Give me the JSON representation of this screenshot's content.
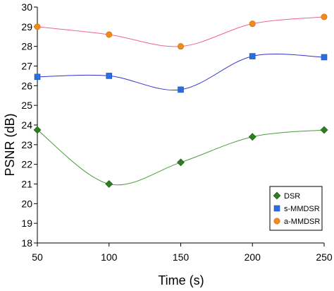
{
  "chart_data": {
    "type": "line",
    "title": "",
    "xlabel": "Time (s)",
    "ylabel": "PSNR (dB)",
    "x": [
      50,
      100,
      150,
      200,
      250
    ],
    "xlim": [
      50,
      250
    ],
    "ylim": [
      18,
      30
    ],
    "xticks": [
      "50",
      "100",
      "150",
      "200",
      "250"
    ],
    "yticks": [
      "18",
      "19",
      "20",
      "21",
      "22",
      "23",
      "24",
      "25",
      "26",
      "27",
      "28",
      "29",
      "30"
    ],
    "grid": false,
    "smooth": true,
    "legend_position": "bottom-right",
    "series": [
      {
        "name": "DSR",
        "values": [
          23.75,
          21.0,
          22.1,
          23.4,
          23.75
        ],
        "line_color": "#4a9e3c",
        "marker_color": "#2e7d22",
        "marker": "diamond"
      },
      {
        "name": "s-MMDSR",
        "values": [
          26.45,
          26.5,
          25.8,
          27.5,
          27.45
        ],
        "line_color": "#3333cc",
        "marker_color": "#2a6de0",
        "marker": "square"
      },
      {
        "name": "a-MMDSR",
        "values": [
          29.0,
          28.6,
          28.0,
          29.15,
          29.5
        ],
        "line_color": "#ee6688",
        "marker_color": "#f08a1a",
        "marker": "circle"
      }
    ]
  }
}
